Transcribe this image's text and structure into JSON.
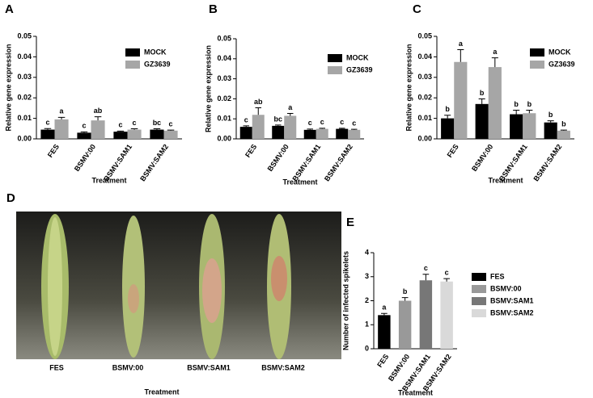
{
  "chart_data": [
    {
      "type": "bar",
      "panel": "A",
      "ylabel": "Relative gene expression",
      "xlabel": "Treatment",
      "categories": [
        "FES",
        "BSMV:00",
        "BSMV:SAM1",
        "BSMV:SAM2"
      ],
      "series": [
        {
          "name": "MOCK",
          "color": "#000000",
          "values": [
            0.0045,
            0.003,
            0.0035,
            0.0045
          ],
          "errors": [
            0.0005,
            0.0004,
            0.0003,
            0.0004
          ],
          "letters": [
            "c",
            "c",
            "c",
            "bc"
          ]
        },
        {
          "name": "GZ3639",
          "color": "#a6a6a6",
          "values": [
            0.0095,
            0.009,
            0.0045,
            0.004
          ],
          "errors": [
            0.001,
            0.0018,
            0.0004,
            0.0003
          ],
          "letters": [
            "a",
            "ab",
            "c",
            "c"
          ]
        }
      ],
      "ylim": [
        0,
        0.05
      ],
      "yticks": [
        {
          "value": 0,
          "label": "0.00"
        },
        0.01,
        0.02,
        0.03,
        0.04,
        0.05
      ]
    },
    {
      "type": "bar",
      "panel": "B",
      "ylabel": "Relative gene expression",
      "xlabel": "Treatment",
      "categories": [
        "FES",
        "BSMV:00",
        "BSMV:SAM1",
        "BSMV:SAM2"
      ],
      "series": [
        {
          "name": "MOCK",
          "color": "#000000",
          "values": [
            0.006,
            0.0065,
            0.0045,
            0.005
          ],
          "errors": [
            0.0005,
            0.0004,
            0.0004,
            0.0003
          ],
          "letters": [
            "c",
            "bc",
            "c",
            "c"
          ]
        },
        {
          "name": "GZ3639",
          "color": "#a6a6a6",
          "values": [
            0.012,
            0.0115,
            0.005,
            0.0045
          ],
          "errors": [
            0.0035,
            0.0012,
            0.0003,
            0.0003
          ],
          "letters": [
            "ab",
            "a",
            "c",
            "c"
          ]
        }
      ],
      "ylim": [
        0,
        0.05
      ],
      "yticks": [
        {
          "value": 0,
          "label": "0.00"
        },
        0.01,
        0.02,
        0.03,
        0.04,
        0.05
      ]
    },
    {
      "type": "bar",
      "panel": "C",
      "ylabel": "Relative gene expression",
      "xlabel": "Treatment",
      "categories": [
        "FES",
        "BSMV:00",
        "BSMV:SAM1",
        "BSMV:SAM2"
      ],
      "series": [
        {
          "name": "MOCK",
          "color": "#000000",
          "values": [
            0.01,
            0.017,
            0.012,
            0.008
          ],
          "errors": [
            0.0015,
            0.0025,
            0.002,
            0.0008
          ],
          "letters": [
            "b",
            "b",
            "b",
            "b"
          ]
        },
        {
          "name": "GZ3639",
          "color": "#a6a6a6",
          "values": [
            0.0375,
            0.035,
            0.0125,
            0.004
          ],
          "errors": [
            0.006,
            0.0045,
            0.0015,
            0.0003
          ],
          "letters": [
            "a",
            "a",
            "b",
            "b"
          ]
        }
      ],
      "ylim": [
        0,
        0.05
      ],
      "yticks": [
        {
          "value": 0,
          "label": "0.00"
        },
        0.01,
        0.02,
        0.03,
        0.04,
        0.05
      ]
    },
    {
      "type": "bar",
      "panel": "E",
      "ylabel": "Number of infected spikelets",
      "xlabel": "Treatment",
      "categories": [
        "FES",
        "BSMV:00",
        "BSMV:SAM1",
        "BSMV:SAM2"
      ],
      "colors": [
        "#000000",
        "#999999",
        "#777777",
        "#d9d9d9"
      ],
      "values": [
        1.4,
        2.0,
        2.85,
        2.8
      ],
      "errors": [
        0.07,
        0.13,
        0.25,
        0.12
      ],
      "letters": [
        "a",
        "b",
        "c",
        "c"
      ],
      "ylim": [
        0,
        4
      ],
      "yticks": [
        0,
        1,
        2,
        3,
        4
      ]
    }
  ],
  "photo": {
    "panel": "D",
    "labels": [
      "FES",
      "BSMV:00",
      "BSMV:SAM1",
      "BSMV:SAM2"
    ],
    "xlabel": "Treatment"
  }
}
